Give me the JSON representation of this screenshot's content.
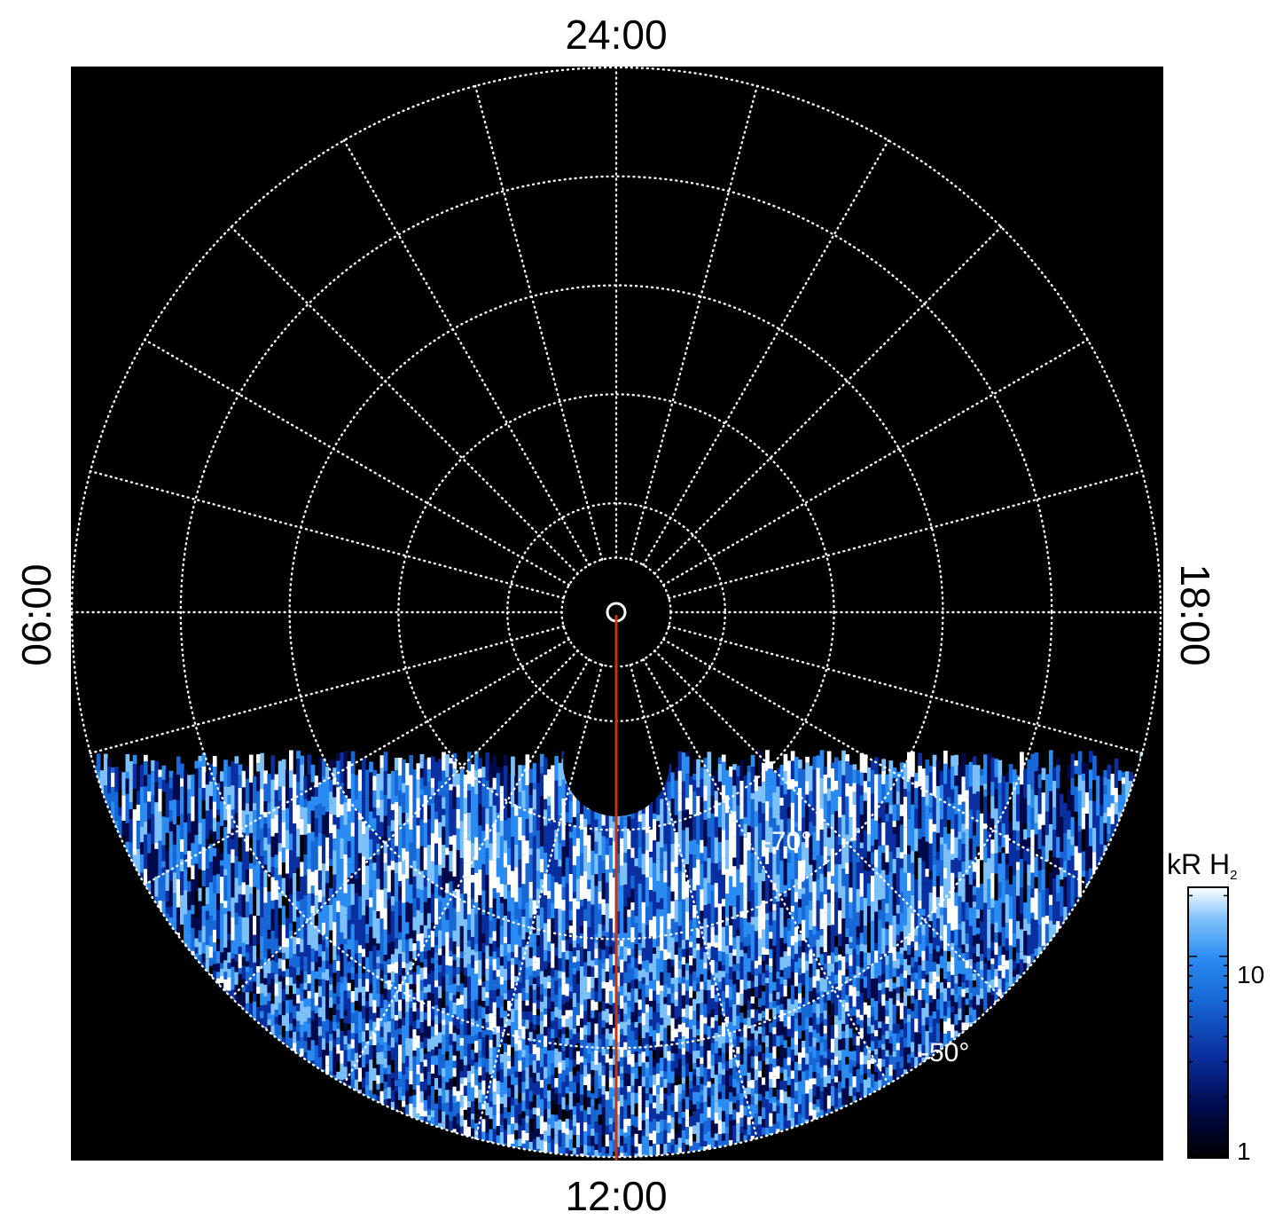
{
  "chart_data": {
    "type": "heatmap",
    "projection": "polar",
    "hemisphere": "south",
    "local_time_labels": {
      "top": "24:00",
      "bottom": "12:00",
      "left": "06:00",
      "right": "18:00"
    },
    "latitude_labels": [
      {
        "lat": -70,
        "text": "-70°"
      },
      {
        "lat": -50,
        "text": "-50°"
      }
    ],
    "grid": {
      "latitude_circles": [
        -85,
        -80,
        -70,
        -60,
        -50,
        -40
      ],
      "longitude_step_hours": 1,
      "line_color": "#ffffff",
      "style": "dotted"
    },
    "data_coverage": "only the dayside sector below about 35° latitude from the pole is filled with emission; the nightside is empty",
    "marker_line": {
      "from": "pole",
      "to_local_time": "12:00",
      "color": "#c8330e"
    },
    "colorbar": {
      "title": "kR H",
      "title_subscript": "2",
      "scale": "log",
      "range": [
        1,
        22
      ],
      "tick_labels": [
        {
          "value": 1,
          "text": "1"
        },
        {
          "value": 10,
          "text": "10"
        }
      ],
      "colors": [
        "#000000",
        "#000a4a",
        "#0a2fa0",
        "#1767d6",
        "#2a8cf2",
        "#7cc0fa",
        "#ffffff"
      ]
    },
    "background": "#000000"
  }
}
